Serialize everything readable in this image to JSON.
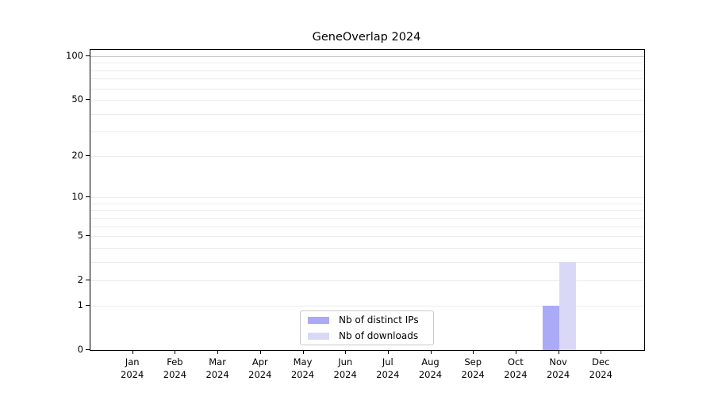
{
  "chart_data": {
    "type": "bar",
    "title": "GeneOverlap 2024",
    "categories": [
      "Jan",
      "Feb",
      "Mar",
      "Apr",
      "May",
      "Jun",
      "Jul",
      "Aug",
      "Sep",
      "Oct",
      "Nov",
      "Dec"
    ],
    "year_label": "2024",
    "series": [
      {
        "name": "Nb of distinct IPs",
        "color": "#aaaaf7",
        "values": [
          0,
          0,
          0,
          0,
          0,
          0,
          0,
          0,
          0,
          0,
          1,
          0
        ]
      },
      {
        "name": "Nb of downloads",
        "color": "#d9d9f7",
        "values": [
          0,
          0,
          0,
          0,
          0,
          0,
          0,
          0,
          0,
          0,
          3,
          0
        ]
      }
    ],
    "y_scale": "log10(value+1)",
    "y_tick_values": [
      100,
      50,
      20,
      10,
      5,
      2,
      1,
      0
    ],
    "y_gridlines": [
      1,
      2,
      3,
      4,
      5,
      6,
      7,
      8,
      9,
      10,
      20,
      30,
      40,
      50,
      60,
      70,
      80,
      90,
      100
    ],
    "y_axis_max": 100,
    "ylim": [
      0,
      100
    ],
    "grid": "horizontal-minor",
    "legend_position": "lower center inside"
  },
  "colors": {
    "axis": "#000000",
    "gridline_minor": "#ececec",
    "gridline_major": "#c6c6c6",
    "legend_border": "#cccccc",
    "background": "#ffffff"
  }
}
